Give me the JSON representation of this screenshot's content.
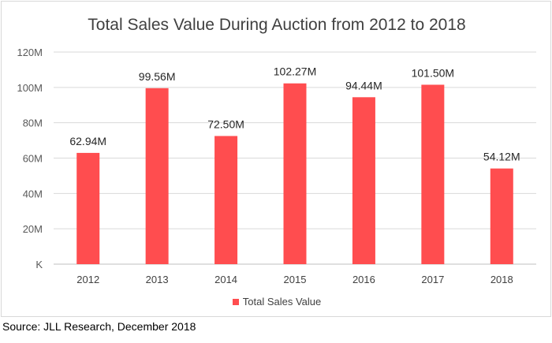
{
  "chart_data": {
    "type": "bar",
    "title": "Total Sales Value During Auction from 2012 to 2018",
    "categories": [
      "2012",
      "2013",
      "2014",
      "2015",
      "2016",
      "2017",
      "2018"
    ],
    "series": [
      {
        "name": "Total Sales Value",
        "values": [
          62.94,
          99.56,
          72.5,
          102.27,
          94.44,
          101.5,
          54.12
        ],
        "data_labels": [
          "62.94M",
          "99.56M",
          "72.50M",
          "102.27M",
          "94.44M",
          "101.50M",
          "54.12M"
        ],
        "color": "#ff4d4f"
      }
    ],
    "yticks": [
      0,
      20,
      40,
      60,
      80,
      100,
      120
    ],
    "ytick_labels": [
      "K",
      "20M",
      "40M",
      "60M",
      "80M",
      "100M",
      "120M"
    ],
    "ylim": [
      0,
      120
    ],
    "grid": true,
    "legend_position": "bottom"
  },
  "footer": {
    "source": "Source: JLL Research, December 2018"
  }
}
